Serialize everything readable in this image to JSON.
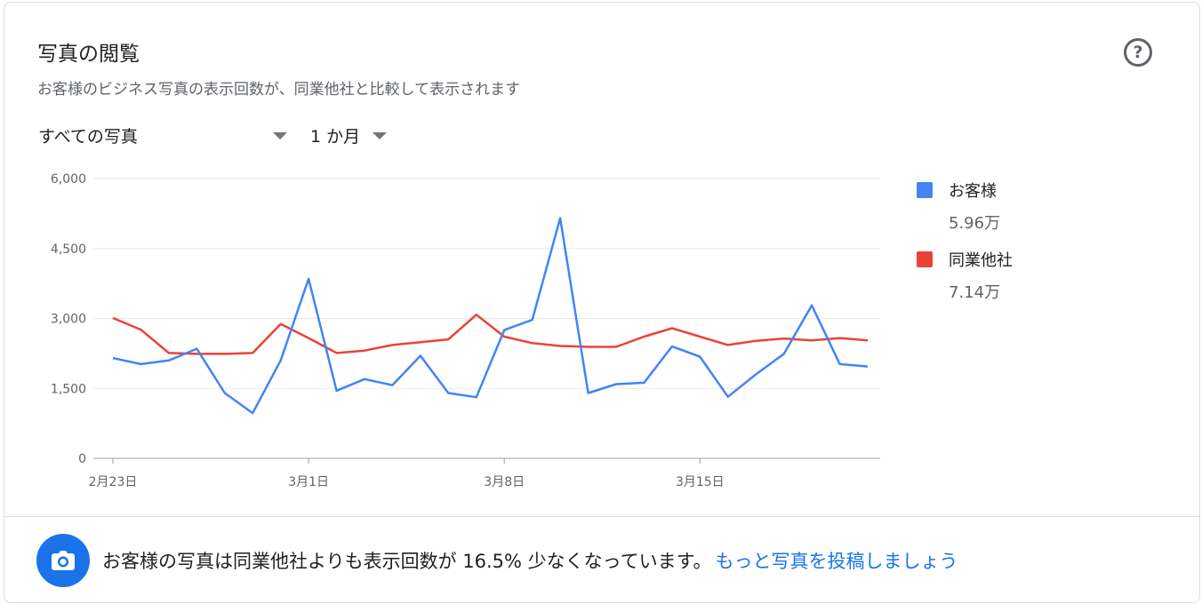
{
  "header": {
    "title": "写真の閲覧",
    "subtitle": "お客様のビジネス写真の表示回数が、同業他社と比較して表示されます",
    "help_symbol": "?"
  },
  "filters": {
    "photos_label": "すべての写真",
    "period_label": "1 か月"
  },
  "legend": [
    {
      "name": "お客様",
      "total": "5.96万",
      "color": "#4285f4"
    },
    {
      "name": "同業他社",
      "total": "7.14万",
      "color": "#ea4335"
    }
  ],
  "footer": {
    "message": "お客様の写真は同業他社よりも表示回数が 16.5% 少なくなっています。",
    "link": "もっと写真を投稿しましょう",
    "icon": "camera-icon"
  },
  "chart_data": {
    "type": "line",
    "x": [
      "2月23日",
      "2月24日",
      "2月25日",
      "2月26日",
      "2月27日",
      "2月28日",
      "2月29日",
      "3月1日",
      "3月2日",
      "3月3日",
      "3月4日",
      "3月5日",
      "3月6日",
      "3月7日",
      "3月8日",
      "3月9日",
      "3月10日",
      "3月11日",
      "3月12日",
      "3月13日",
      "3月14日",
      "3月15日",
      "3月16日",
      "3月17日",
      "3月18日",
      "3月19日",
      "3月20日",
      "3月21日"
    ],
    "x_tick_labels": [
      "2月23日",
      "3月1日",
      "3月8日",
      "3月15日"
    ],
    "y_tick_labels": [
      "0",
      "1,500",
      "3,000",
      "4,500",
      "6,000"
    ],
    "ylim": [
      0,
      6000
    ],
    "yticks": [
      0,
      1500,
      3000,
      4500,
      6000
    ],
    "grid": true,
    "legend_position": "right",
    "series": [
      {
        "name": "お客様",
        "color": "#4285f4",
        "values": [
          2150,
          2020,
          2100,
          2350,
          1400,
          970,
          2100,
          3850,
          1450,
          1700,
          1570,
          2200,
          1400,
          1310,
          2750,
          2970,
          5150,
          1400,
          1590,
          1620,
          2400,
          2180,
          1320,
          1800,
          2240,
          3280,
          2020,
          1970
        ]
      },
      {
        "name": "同業他社",
        "color": "#ea4335",
        "values": [
          3010,
          2760,
          2260,
          2240,
          2240,
          2260,
          2880,
          2580,
          2260,
          2310,
          2430,
          2490,
          2550,
          3080,
          2610,
          2470,
          2410,
          2390,
          2390,
          2610,
          2790,
          2610,
          2430,
          2520,
          2570,
          2530,
          2580,
          2530
        ]
      }
    ]
  }
}
